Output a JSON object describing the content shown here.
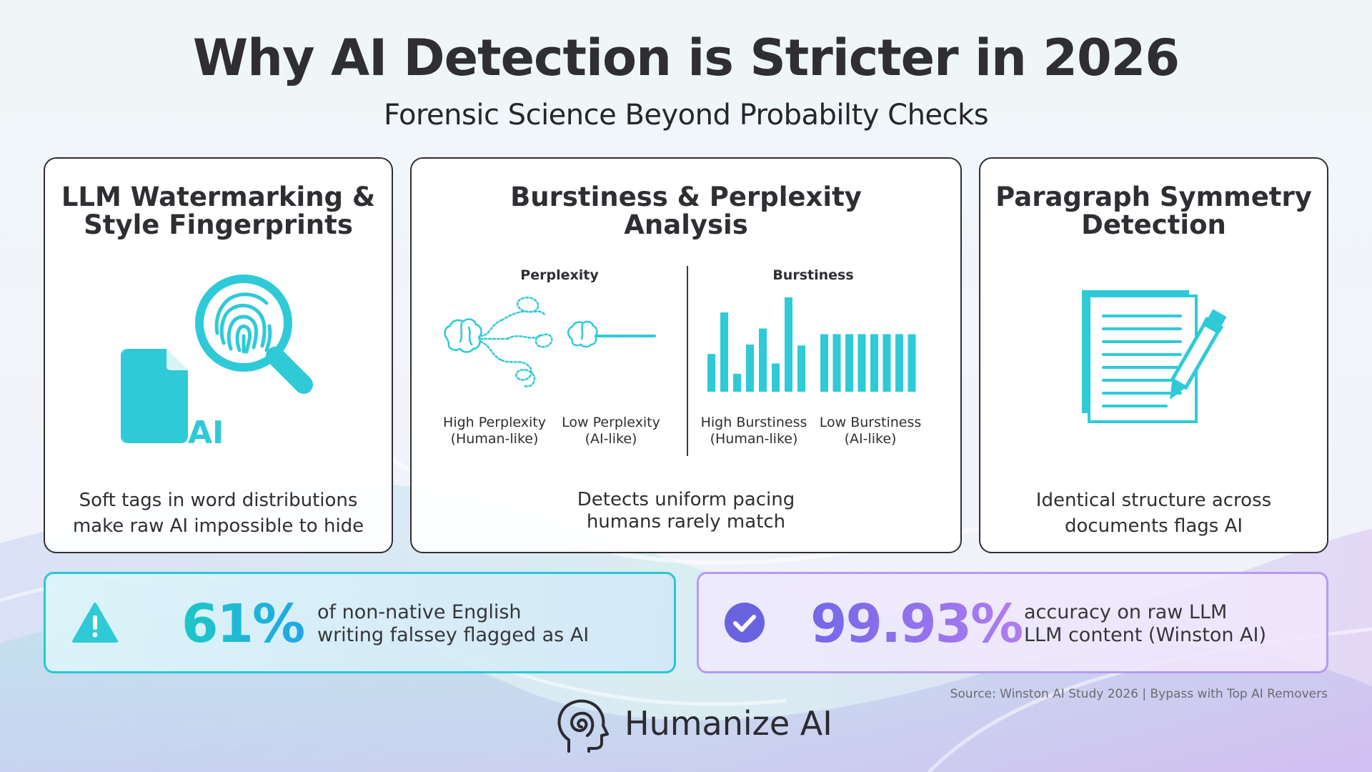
{
  "header": {
    "title": "Why AI Detection is Stricter in 2026",
    "subtitle": "Forensic Science Beyond Probabilty Checks"
  },
  "cards": [
    {
      "title_lines": [
        "LLM Watermarking &",
        "Style Fingerprints"
      ],
      "icon": "fingerprint-search-document-icon",
      "icon_text": "AI",
      "desc_lines": [
        "Soft tags in word distributions",
        "make raw AI impossible to hide"
      ]
    },
    {
      "title_lines": [
        "Burstiness & Perplexity",
        "Analysis"
      ],
      "perplexity": {
        "heading": "Perplexity",
        "high_label": [
          "High Perplexity",
          "(Human-like)"
        ],
        "low_label": [
          "Low Perplexity",
          "(AI-like)"
        ]
      },
      "burstiness": {
        "heading": "Burstiness",
        "high_label": [
          "High Burstiness",
          "(Human-like)"
        ],
        "low_label": [
          "Low Burstiness",
          "(AI-like)"
        ],
        "high_bar_levels": [
          0.4,
          0.84,
          0.19,
          0.5,
          0.67,
          0.3,
          1.0,
          0.49
        ],
        "low_bar_levels": [
          0.61,
          0.61,
          0.61,
          0.61,
          0.61,
          0.61,
          0.61,
          0.61
        ]
      },
      "desc_lines": [
        "Detects uniform pacing",
        "humans rarely match"
      ]
    },
    {
      "title_lines": [
        "Paragraph Symmetry",
        "Detection"
      ],
      "icon": "document-pen-icon",
      "desc_lines": [
        "Identical structure across",
        "documents flags AI"
      ]
    }
  ],
  "stats": [
    {
      "icon": "warning-icon",
      "value": "61%",
      "text_lines": [
        "of non-native English",
        "writing falssey flagged as AI"
      ]
    },
    {
      "icon": "check-circle-icon",
      "value": "99.93%",
      "text_lines": [
        "accuracy on raw LLM",
        "LLM content (Winston AI)"
      ]
    }
  ],
  "source": "Source: Winston AI Study 2026 | Bypass with Top AI Removers",
  "brand": {
    "name": "Humanize AI",
    "icon": "head-spiral-icon"
  },
  "colors": {
    "accent_teal": "#2ecad8",
    "accent_purple": "#7a6ae8",
    "text_dark": "#2e2e33"
  }
}
